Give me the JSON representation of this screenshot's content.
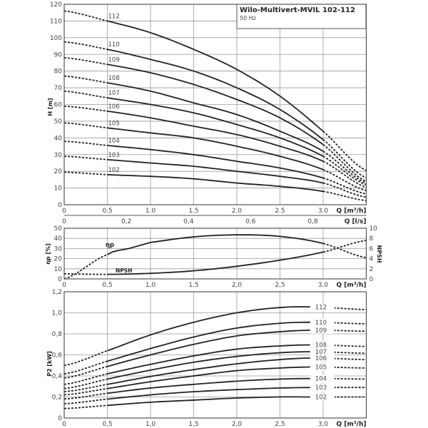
{
  "chart_data": [
    {
      "type": "line",
      "title": "Wilo-Multivert-MVIL 102-112",
      "subtitle": "50 Hz",
      "xlabel": "Q [m³/h]",
      "xlabel2": "Q [l/s]",
      "ylabel": "H [m]",
      "xlim": [
        0,
        3.5
      ],
      "ylim": [
        0,
        120
      ],
      "xticks": [
        "0",
        "0.5",
        "1.0",
        "1.5",
        "2.0",
        "2.5",
        "3.0"
      ],
      "xticks2": [
        "0",
        "0,2",
        "0,4",
        "0,6",
        "0,8"
      ],
      "yticks": [
        "0",
        "10",
        "20",
        "30",
        "40",
        "50",
        "60",
        "70",
        "80",
        "90",
        "100",
        "110",
        "120"
      ],
      "x": [
        0,
        0.5,
        1.0,
        1.5,
        2.0,
        2.5,
        3.0,
        3.5
      ],
      "solid_range": [
        0.5,
        3.0
      ],
      "series": [
        {
          "name": "112",
          "values": [
            116,
            110,
            103,
            93,
            81,
            65,
            44,
            20.5
          ]
        },
        {
          "name": "110",
          "values": [
            97.5,
            93,
            87,
            80,
            70,
            57,
            39,
            16
          ]
        },
        {
          "name": "109",
          "values": [
            88,
            84,
            79,
            72,
            63,
            52,
            36,
            14
          ]
        },
        {
          "name": "108",
          "values": [
            77,
            73,
            68,
            61,
            54,
            44,
            32,
            13
          ]
        },
        {
          "name": "107",
          "values": [
            68,
            64,
            60,
            55,
            48,
            40,
            29,
            12
          ]
        },
        {
          "name": "106",
          "values": [
            59,
            56,
            52,
            47,
            42,
            35,
            26,
            10.5
          ]
        },
        {
          "name": "105",
          "values": [
            49,
            46,
            43,
            40,
            35,
            29,
            21,
            8.5
          ]
        },
        {
          "name": "104",
          "values": [
            38,
            35.5,
            33,
            30,
            26,
            22,
            16,
            6.5
          ]
        },
        {
          "name": "103",
          "values": [
            29,
            27,
            25,
            23,
            20,
            17,
            13,
            4.5
          ]
        },
        {
          "name": "102",
          "values": [
            19.5,
            18,
            17,
            15.5,
            13,
            11,
            8,
            2.5
          ]
        }
      ]
    },
    {
      "type": "line",
      "xlabel": "Q [m³/h]",
      "ylabel": "ηp [%]",
      "ylabel_right": "NPSH",
      "xlim": [
        0,
        3.5
      ],
      "ylim": [
        0,
        50
      ],
      "ylim_right": [
        0,
        10
      ],
      "xticks": [
        "0",
        "0,5",
        "1,0",
        "1,5",
        "2,0",
        "2,5",
        "3,0"
      ],
      "yticks": [
        "0",
        "10",
        "20",
        "30",
        "40",
        "50"
      ],
      "yticks_right": [
        "0",
        "2",
        "4",
        "6",
        "8",
        "10"
      ],
      "solid_range": [
        0.5,
        3.0
      ],
      "series": [
        {
          "name": "ηp",
          "axis": "left",
          "x": [
            0,
            0.5,
            0.75,
            1.0,
            1.5,
            2.0,
            2.5,
            3.0,
            3.5
          ],
          "values": [
            0,
            24,
            30,
            36,
            41.5,
            43.5,
            42,
            35,
            21
          ]
        },
        {
          "name": "NPSH",
          "axis": "right",
          "x": [
            0,
            0.5,
            1.0,
            1.5,
            2.0,
            2.5,
            3.0,
            3.5
          ],
          "values": [
            1,
            0.9,
            1.1,
            1.6,
            2.5,
            3.7,
            5.3,
            7.6
          ]
        }
      ]
    },
    {
      "type": "line",
      "xlabel": "Q [m³/h]",
      "ylabel": "P2 [kW]",
      "xlim": [
        0,
        3.5
      ],
      "ylim": [
        0,
        1.2
      ],
      "xticks": [
        "0",
        "0,5",
        "1,0",
        "1,5",
        "2,0",
        "2,5",
        "3,0"
      ],
      "yticks": [
        "0",
        "0,2",
        "0,4",
        "0,6",
        "0,8",
        "1,0",
        "1,2"
      ],
      "x": [
        0,
        0.5,
        1.0,
        1.5,
        2.0,
        2.5,
        2.9,
        3.5
      ],
      "solid_range": [
        0.5,
        2.9
      ],
      "series": [
        {
          "name": "112",
          "values": [
            0.5,
            0.64,
            0.79,
            0.91,
            1.0,
            1.05,
            1.055,
            1.03
          ]
        },
        {
          "name": "110",
          "values": [
            0.42,
            0.54,
            0.66,
            0.77,
            0.855,
            0.9,
            0.91,
            0.895
          ]
        },
        {
          "name": "109",
          "values": [
            0.38,
            0.49,
            0.6,
            0.7,
            0.78,
            0.82,
            0.835,
            0.825
          ]
        },
        {
          "name": "108",
          "values": [
            0.32,
            0.42,
            0.51,
            0.59,
            0.655,
            0.685,
            0.695,
            0.68
          ]
        },
        {
          "name": "107",
          "values": [
            0.28,
            0.37,
            0.455,
            0.53,
            0.585,
            0.62,
            0.63,
            0.615
          ]
        },
        {
          "name": "106",
          "values": [
            0.25,
            0.32,
            0.395,
            0.46,
            0.515,
            0.555,
            0.57,
            0.555
          ]
        },
        {
          "name": "105",
          "values": [
            0.22,
            0.28,
            0.345,
            0.4,
            0.45,
            0.475,
            0.485,
            0.475
          ]
        },
        {
          "name": "104",
          "values": [
            0.18,
            0.235,
            0.285,
            0.32,
            0.35,
            0.37,
            0.375,
            0.37
          ]
        },
        {
          "name": "103",
          "values": [
            0.135,
            0.18,
            0.22,
            0.25,
            0.27,
            0.285,
            0.29,
            0.29
          ]
        },
        {
          "name": "102",
          "values": [
            0.09,
            0.12,
            0.15,
            0.17,
            0.19,
            0.2,
            0.2,
            0.2
          ]
        }
      ]
    }
  ]
}
